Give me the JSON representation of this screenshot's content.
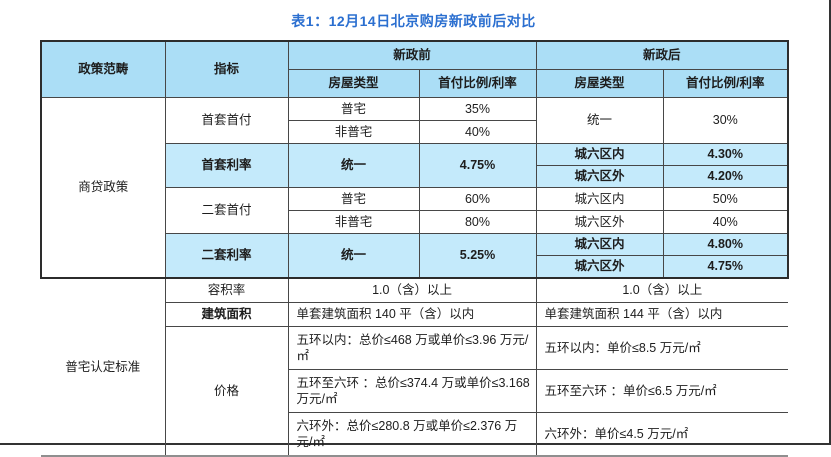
{
  "page": {
    "title": "表1：12月14日北京购房新政前后对比"
  },
  "colors": {
    "title_text": "#2b6fd0",
    "header_bg": "#abdef6",
    "highlight_bg": "#c4eafb",
    "grid_border": "#474747",
    "frame_border": "#333333"
  },
  "header": {
    "policy_scope": "政策范畴",
    "indicator": "指标",
    "before_label": "新政前",
    "after_label": "新政后",
    "house_type": "房屋类型",
    "ratio_label": "首付比例/利率"
  },
  "loan": {
    "label": "商贷政策",
    "first_down": {
      "label": "首套首付",
      "b1_type": "普宅",
      "b1_val": "35%",
      "b2_type": "非普宅",
      "b2_val": "40%",
      "a_type": "统一",
      "a_val": "30%"
    },
    "first_rate": {
      "label": "首套利率",
      "b_type": "统一",
      "b_val": "4.75%",
      "a1_type": "城六区内",
      "a1_val": "4.30%",
      "a2_type": "城六区外",
      "a2_val": "4.20%"
    },
    "second_down": {
      "label": "二套首付",
      "b1_type": "普宅",
      "b1_val": "60%",
      "b2_type": "非普宅",
      "b2_val": "80%",
      "a1_type": "城六区内",
      "a1_val": "50%",
      "a2_type": "城六区外",
      "a2_val": "40%"
    },
    "second_rate": {
      "label": "二套利率",
      "b_type": "统一",
      "b_val": "5.25%",
      "a1_type": "城六区内",
      "a1_val": "4.80%",
      "a2_type": "城六区外",
      "a2_val": "4.75%"
    }
  },
  "standard": {
    "label": "普宅认定标准",
    "plot_ratio": {
      "label": "容积率",
      "before": "1.0（含）以上",
      "after": "1.0（含）以上"
    },
    "floor_area": {
      "label": "建筑面积",
      "before": "单套建筑面积 140 平（含）以内",
      "after": "单套建筑面积 144 平（含）以内"
    },
    "price": {
      "label": "价格",
      "before": [
        "五环以内：总价≤468 万或单价≤3.96 万元/㎡",
        "五环至六环 ：总价≤374.4 万或单价≤3.168 万元/㎡",
        "六环外：总价≤280.8 万或单价≤2.376 万元/㎡"
      ],
      "after": [
        "五环以内：单价≤8.5 万元/㎡",
        "五环至六环 ：单价≤6.5 万元/㎡",
        "六环外：单价≤4.5 万元/㎡"
      ]
    }
  }
}
